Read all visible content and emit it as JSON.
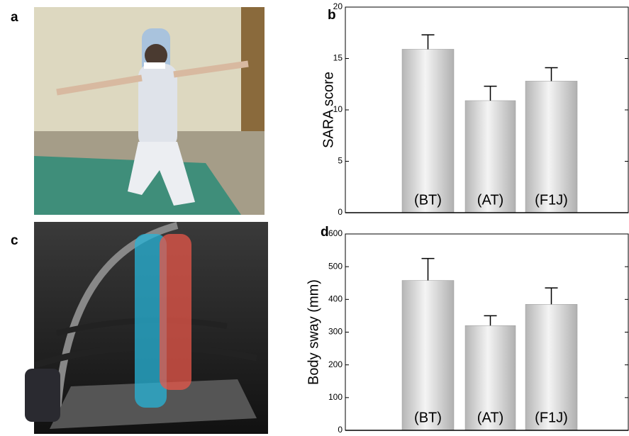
{
  "panel_labels": [
    "a",
    "b",
    "c",
    "d"
  ],
  "chart_data": [
    {
      "type": "bar",
      "ylabel": "SARA score",
      "categories": [
        "(BT)",
        "(AT)",
        "(F1J)"
      ],
      "values": [
        15.9,
        10.9,
        12.8
      ],
      "errors": [
        1.4,
        1.4,
        1.3
      ],
      "ylim": [
        0,
        20
      ],
      "yticks": [
        0,
        5,
        10,
        15,
        20
      ],
      "color": "#d0d0d0"
    },
    {
      "type": "bar",
      "ylabel": "Body sway (mm)",
      "categories": [
        "(BT)",
        "(AT)",
        "(F1J)"
      ],
      "values": [
        458,
        320,
        385
      ],
      "errors": [
        67,
        30,
        50
      ],
      "ylim": [
        0,
        600
      ],
      "yticks": [
        0,
        100,
        200,
        300,
        400,
        500,
        600
      ],
      "color": "#d0d0d0"
    }
  ]
}
